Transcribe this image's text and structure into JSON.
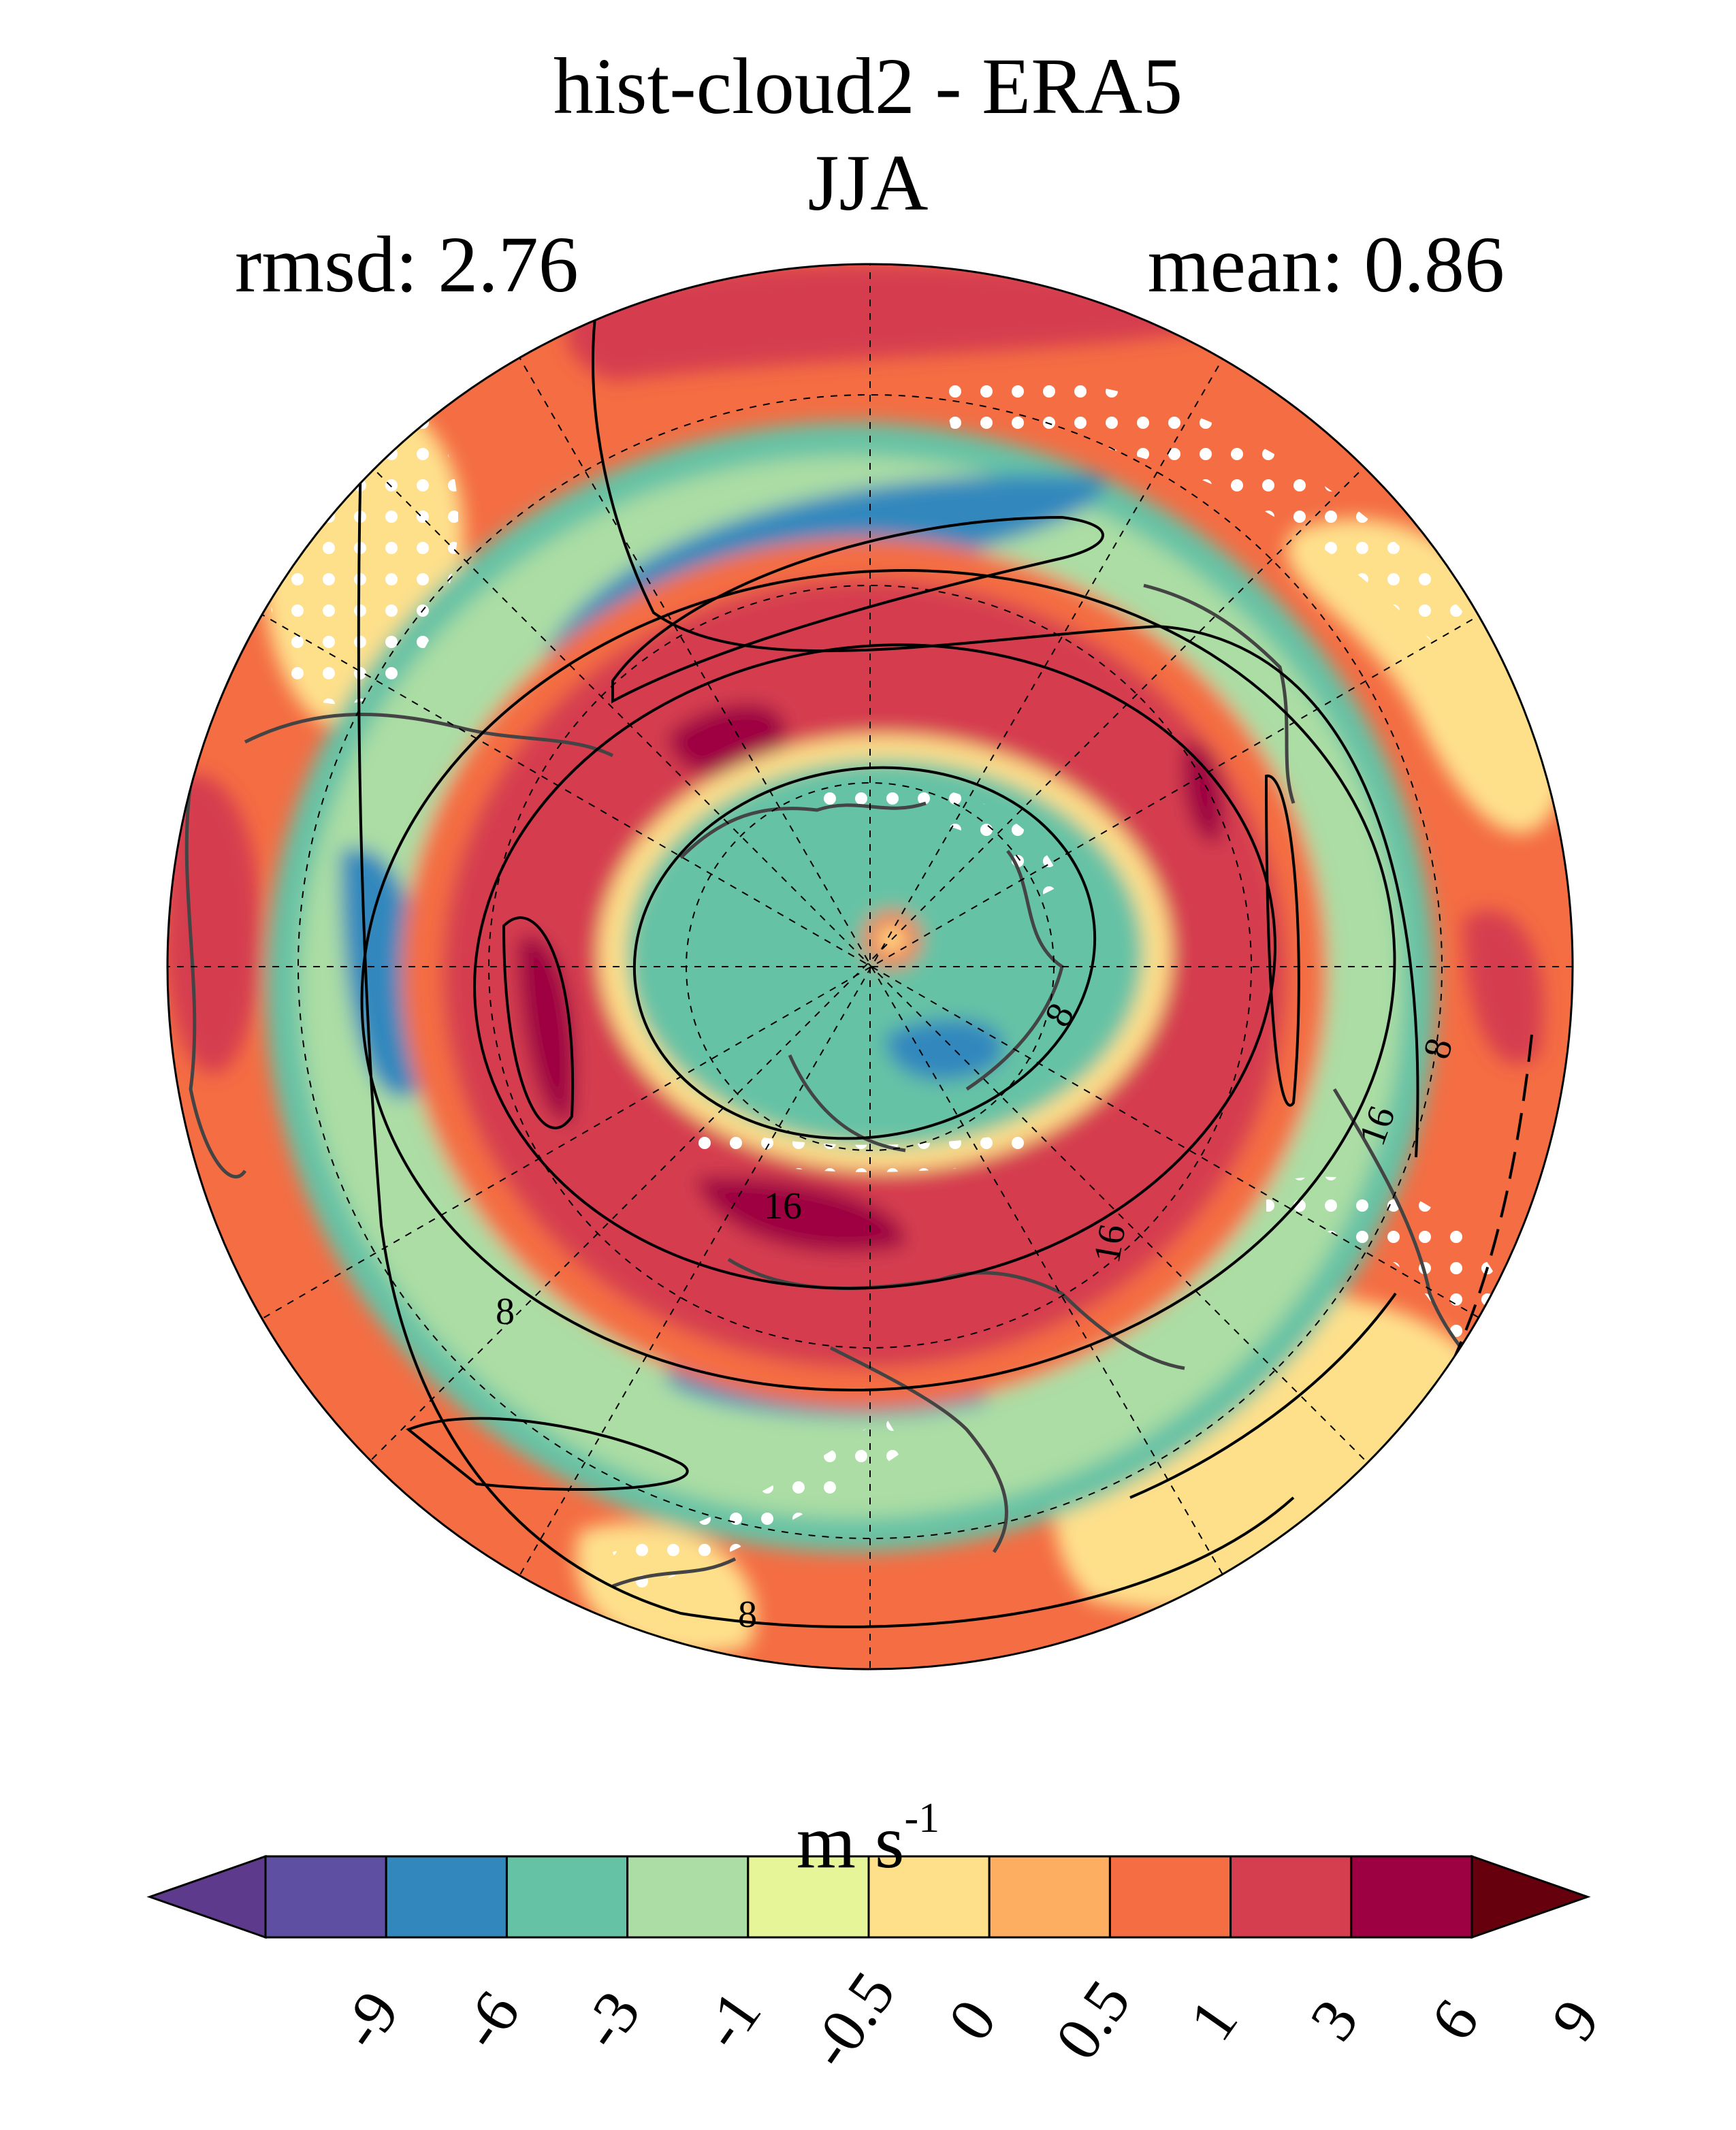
{
  "title": "hist-cloud2 - ERA5",
  "season": "JJA",
  "stats": {
    "rmsd_label": "rmsd: 2.76",
    "mean_label": "mean: 0.86"
  },
  "map": {
    "projection": "north-polar-stereographic",
    "stippling": "white dots",
    "contour_color": "#000000",
    "coastline_color": "#444444",
    "contour_labels": [
      "8",
      "16",
      "16",
      "16",
      "8",
      "8",
      "8"
    ]
  },
  "colorbar": {
    "units_base": "m s",
    "units_exp": "-1",
    "ticks": [
      "-9",
      "-6",
      "-3",
      "-1",
      "-0.5",
      "0",
      "0.5",
      "1",
      "3",
      "6",
      "9"
    ],
    "colors": [
      "#5e3a8c",
      "#5e4fa2",
      "#3288bd",
      "#66c2a5",
      "#abdda4",
      "#e6f598",
      "#fee08b",
      "#fdae61",
      "#f46d43",
      "#d53e4f",
      "#9e0142",
      "#67000d"
    ]
  }
}
